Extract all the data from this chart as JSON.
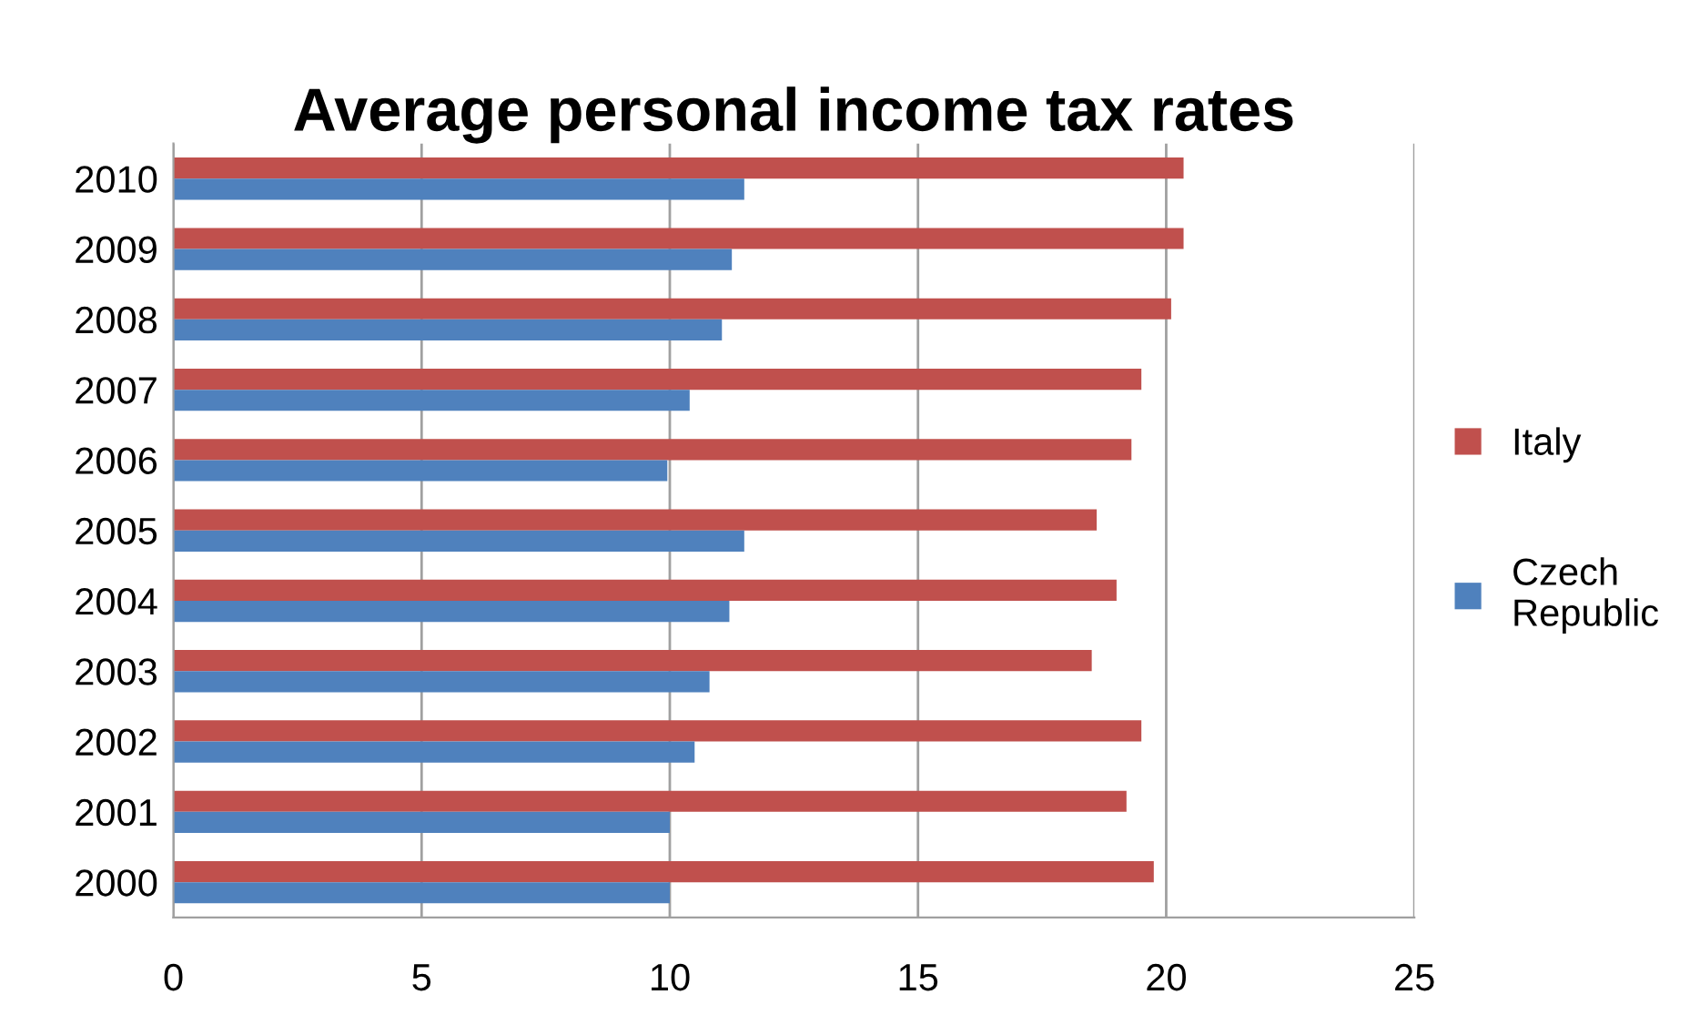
{
  "chart_data": {
    "type": "bar",
    "orientation": "horizontal",
    "title": "Average personal income tax rates",
    "categories": [
      "2010",
      "2009",
      "2008",
      "2007",
      "2006",
      "2005",
      "2004",
      "2003",
      "2002",
      "2001",
      "2000"
    ],
    "series": [
      {
        "name": "Italy",
        "color": "#c0504d",
        "values": [
          20.35,
          20.35,
          20.1,
          19.5,
          19.3,
          18.6,
          19.0,
          18.5,
          19.5,
          19.2,
          19.75
        ]
      },
      {
        "name": "Czech Republic",
        "color": "#4f81bd",
        "values": [
          11.5,
          11.25,
          11.05,
          10.4,
          9.95,
          11.5,
          11.2,
          10.8,
          10.5,
          10.0,
          10.0
        ]
      }
    ],
    "xlim": [
      0,
      25
    ],
    "xticks": [
      0,
      5,
      10,
      15,
      20,
      25
    ],
    "grid": "x",
    "legend": "right"
  }
}
